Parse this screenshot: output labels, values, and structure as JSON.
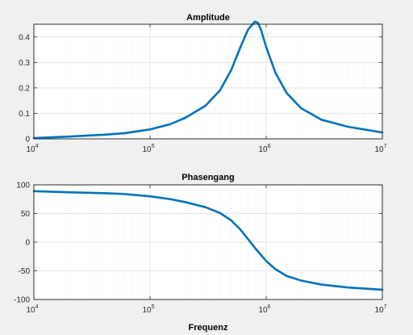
{
  "chart_data": [
    {
      "type": "line",
      "title": "Amplitude",
      "xlabel": "",
      "ylabel": "",
      "xscale": "log",
      "xlim": [
        10000,
        10000000
      ],
      "ylim": [
        0,
        0.45
      ],
      "grid": true,
      "x_ticks": [
        {
          "base": "10",
          "exp": "4"
        },
        {
          "base": "10",
          "exp": "5"
        },
        {
          "base": "10",
          "exp": "6"
        },
        {
          "base": "10",
          "exp": "7"
        }
      ],
      "y_ticks": [
        "0",
        "0.1",
        "0.2",
        "0.3",
        "0.4"
      ],
      "y_tick_values": [
        0,
        0.1,
        0.2,
        0.3,
        0.4
      ],
      "color": "#0072bd",
      "series": [
        {
          "x": [
            10000,
            20000,
            40000,
            60000,
            100000,
            150000,
            200000,
            300000,
            400000,
            500000,
            600000,
            700000,
            800000,
            850000,
            900000,
            1000000,
            1200000,
            1500000,
            2000000,
            3000000,
            5000000,
            10000000
          ],
          "y": [
            0.003,
            0.009,
            0.016,
            0.022,
            0.037,
            0.058,
            0.082,
            0.13,
            0.19,
            0.27,
            0.36,
            0.43,
            0.46,
            0.455,
            0.43,
            0.36,
            0.26,
            0.18,
            0.12,
            0.075,
            0.048,
            0.025
          ]
        }
      ]
    },
    {
      "type": "line",
      "title": "Phasengang",
      "xlabel": "Frequenz",
      "ylabel": "",
      "xscale": "log",
      "xlim": [
        10000,
        10000000
      ],
      "ylim": [
        -100,
        100
      ],
      "grid": true,
      "x_ticks": [
        {
          "base": "10",
          "exp": "4"
        },
        {
          "base": "10",
          "exp": "5"
        },
        {
          "base": "10",
          "exp": "6"
        },
        {
          "base": "10",
          "exp": "7"
        }
      ],
      "y_ticks": [
        "-100",
        "-50",
        "0",
        "50",
        "100"
      ],
      "y_tick_values": [
        -100,
        -50,
        0,
        50,
        100
      ],
      "color": "#0072bd",
      "series": [
        {
          "x": [
            10000,
            20000,
            40000,
            60000,
            100000,
            150000,
            200000,
            300000,
            400000,
            500000,
            600000,
            700000,
            800000,
            900000,
            1000000,
            1200000,
            1500000,
            2000000,
            3000000,
            5000000,
            10000000
          ],
          "y": [
            89,
            87,
            85.5,
            84,
            80,
            75,
            70,
            61,
            51,
            38,
            22,
            5,
            -10,
            -22,
            -33,
            -47,
            -59,
            -67,
            -74,
            -79,
            -83
          ]
        }
      ]
    }
  ]
}
